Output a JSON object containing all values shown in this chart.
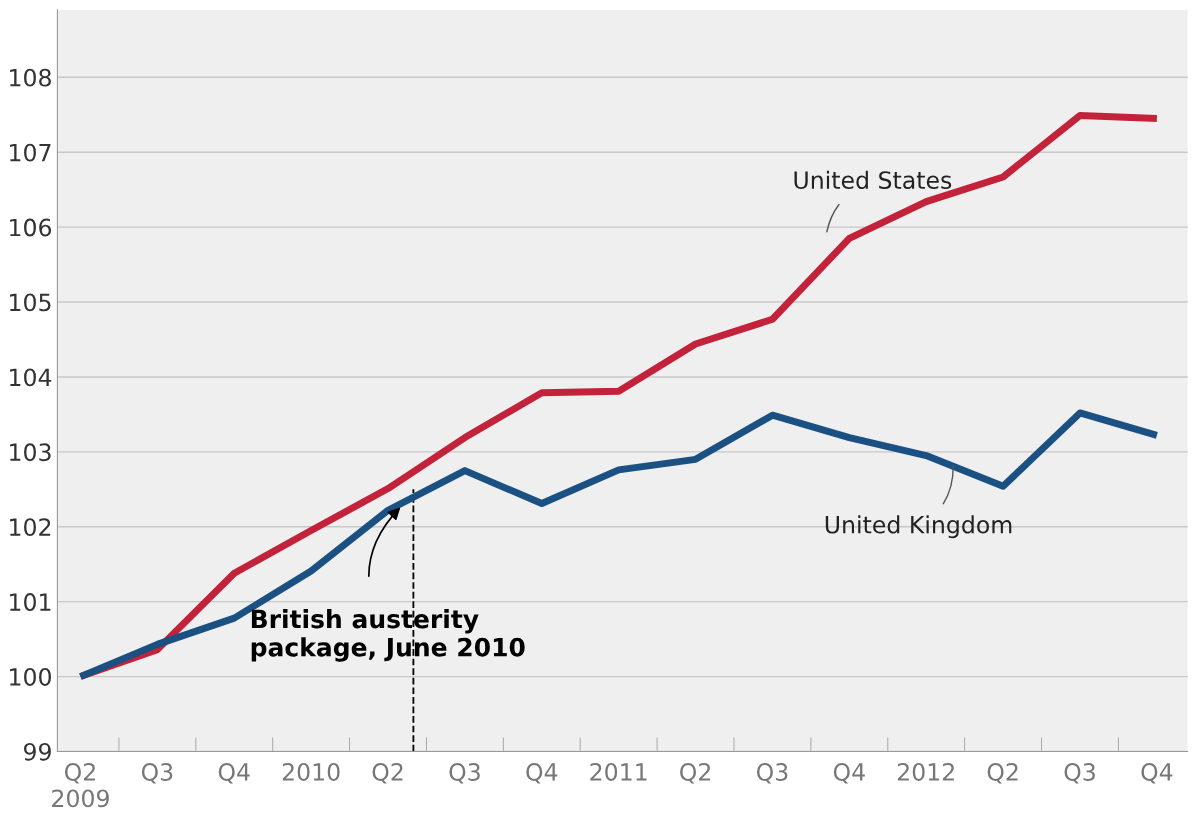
{
  "chart_data": {
    "type": "line",
    "categories": [
      "Q2\n2009",
      "Q3",
      "Q4",
      "2010",
      "Q2",
      "Q3",
      "Q4",
      "2011",
      "Q2",
      "Q3",
      "Q4",
      "2012",
      "Q2",
      "Q3",
      "Q4"
    ],
    "series": [
      {
        "name": "United States",
        "color": "#c3223b",
        "values": [
          100,
          100.36,
          101.38,
          101.95,
          102.51,
          103.19,
          103.79,
          103.81,
          104.44,
          104.77,
          105.85,
          106.34,
          106.67,
          107.49,
          107.45
        ]
      },
      {
        "name": "United Kingdom",
        "color": "#1b5082",
        "values": [
          100,
          100.43,
          100.78,
          101.41,
          102.22,
          102.75,
          102.31,
          102.76,
          102.9,
          103.49,
          103.19,
          102.95,
          102.54,
          103.52,
          103.22
        ]
      }
    ],
    "ylim": [
      99,
      108.9
    ],
    "yticks": [
      99,
      100,
      101,
      102,
      103,
      104,
      105,
      106,
      107,
      108
    ],
    "grid": "y",
    "legend": false,
    "marker": "none",
    "line_style": "solid",
    "annotations": [
      "British austerity\npackage, June 2010"
    ]
  }
}
